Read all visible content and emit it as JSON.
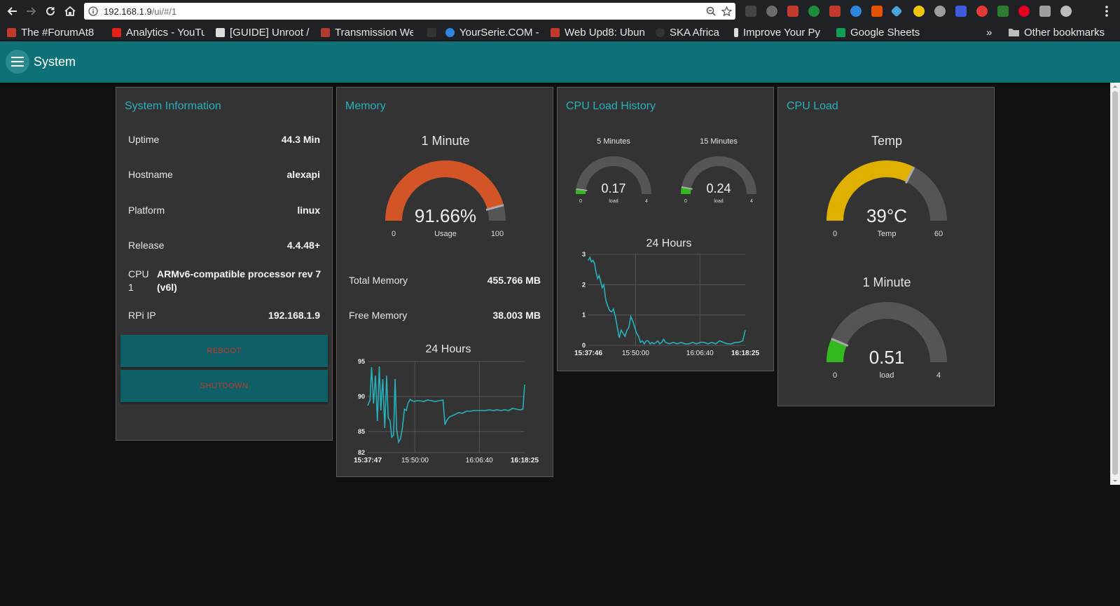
{
  "browser": {
    "url_host": "192.168.1.9",
    "url_path": "/ui/#/1",
    "bookmarks": [
      {
        "label": "The #ForumAt8",
        "color": "#c0392b"
      },
      {
        "label": "Analytics - YouTu",
        "color": "#e62117"
      },
      {
        "label": "[GUIDE] Unroot /",
        "color": "#dddddd"
      },
      {
        "label": "Transmission We",
        "color": "#b03a2e"
      },
      {
        "label": "",
        "color": "#333333"
      },
      {
        "label": "YourSerie.COM -",
        "color": "#2e86de"
      },
      {
        "label": "Web Upd8: Ubun",
        "color": "#c0392b"
      },
      {
        "label": "SKA Africa",
        "color": "#333333"
      },
      {
        "label": "Improve Your Py",
        "color": "#dddddd"
      },
      {
        "label": "Google Sheets",
        "color": "#0f9d58"
      }
    ],
    "overflow_label": "»",
    "other_bookmarks": "Other bookmarks"
  },
  "header": {
    "title": "System",
    "menu_icon": "hamburger-menu-icon"
  },
  "sysinfo": {
    "title": "System Information",
    "rows": [
      {
        "label": "Uptime",
        "value": "44.3 Min"
      },
      {
        "label": "Hostname",
        "value": "alexapi"
      },
      {
        "label": "Platform",
        "value": "linux"
      },
      {
        "label": "Release",
        "value": "4.4.48+"
      },
      {
        "label": "CPU\n1",
        "value": "ARMv6-compatible processor rev 7\n(v6l)"
      },
      {
        "label": "RPi IP",
        "value": "192.168.1.9"
      }
    ],
    "reboot_label": "REBOOT",
    "shutdown_label": "SHUTDOWN",
    "button_text_color": "#c0392b"
  },
  "memory": {
    "title": "Memory",
    "gauge": {
      "title": "1 Minute",
      "value_text": "91.66%",
      "value": 91.66,
      "min": 0,
      "max": 100,
      "label": "Usage",
      "min_label": "0",
      "max_label": "100",
      "color": "#d35427"
    },
    "total_label": "Total Memory",
    "total_value": "455.766 MB",
    "free_label": "Free Memory",
    "free_value": "38.003 MB",
    "chart_title": "24 Hours"
  },
  "cpu_history": {
    "title": "CPU Load History",
    "gauge5": {
      "title": "5 Minutes",
      "value_text": "0.17",
      "value": 0.17,
      "min": 0,
      "max": 4,
      "label": "load",
      "min_label": "0",
      "max_label": "4",
      "color": "#34b81f"
    },
    "gauge15": {
      "title": "15 Minutes",
      "value_text": "0.24",
      "value": 0.24,
      "min": 0,
      "max": 4,
      "label": "load",
      "min_label": "0",
      "max_label": "4",
      "color": "#34b81f"
    },
    "chart_title": "24 Hours"
  },
  "cpu_load": {
    "title": "CPU Load",
    "temp_gauge": {
      "title": "Temp",
      "value_text": "39°C",
      "value": 39,
      "min": 0,
      "max": 60,
      "label": "Temp",
      "min_label": "0",
      "max_label": "60",
      "color": "#e0b000"
    },
    "load_gauge": {
      "title": "1 Minute",
      "value_text": "0.51",
      "value": 0.51,
      "min": 0,
      "max": 4,
      "label": "load",
      "min_label": "0",
      "max_label": "4",
      "color": "#34b81f"
    }
  },
  "colors": {
    "accent": "#26b1bc",
    "appbar": "#0e7177",
    "card": "#333333",
    "line": "#26b1bc",
    "gauge_track": "#555555"
  },
  "chart_data": [
    {
      "type": "line",
      "title": "24 Hours",
      "xlabel": "",
      "ylabel": "",
      "xticks": [
        "15:37:47",
        "15:50:00",
        "16:06:40",
        "16:18:25"
      ],
      "yticks": [
        "95",
        "90",
        "85",
        "82"
      ],
      "ylim": [
        82,
        95
      ],
      "xlim_minutes": [
        0,
        40.63
      ],
      "series": [
        {
          "x": [
            0,
            0.6,
            1.0,
            1.5,
            2.0,
            2.5,
            3.0,
            3.4,
            3.9,
            4.4,
            4.9,
            5.3,
            5.8,
            6.2,
            6.7,
            7.1,
            7.5,
            8.0,
            8.5,
            9.0,
            9.5,
            10.0,
            10.4,
            11.0,
            11.5,
            12.0,
            12.5,
            13.5,
            14.5,
            15.5,
            16.5,
            17.5,
            18.5,
            19.5,
            20.0,
            20.4,
            21.0,
            21.6,
            22.5,
            23.5,
            24.5,
            25.5,
            26.5,
            27.5,
            28.5,
            29.5,
            30.5,
            31.5,
            32.5,
            33.5,
            34.5,
            35.5,
            36.5,
            37.5,
            38.5,
            39.5,
            40.2,
            40.63
          ],
          "y": [
            88.7,
            89.5,
            94.2,
            89.0,
            93.0,
            86.5,
            94.3,
            88.0,
            92.5,
            85.5,
            93.0,
            87.0,
            86.5,
            84.2,
            84.5,
            92.5,
            85.3,
            83.5,
            84.0,
            85.6,
            88.2,
            88.0,
            89.0,
            89.6,
            89.4,
            89.3,
            89.4,
            89.4,
            89.3,
            89.5,
            89.4,
            89.3,
            89.4,
            89.5,
            86.0,
            86.5,
            87.0,
            87.2,
            87.4,
            87.7,
            87.6,
            87.9,
            87.9,
            88.0,
            88.0,
            88.0,
            88.0,
            88.1,
            88.0,
            88.1,
            88.0,
            88.1,
            88.0,
            88.3,
            88.2,
            88.1,
            88.2,
            91.7
          ]
        }
      ]
    },
    {
      "type": "line",
      "title": "24 Hours",
      "xlabel": "",
      "ylabel": "",
      "xticks": [
        "15:37:46",
        "15:50:00",
        "16:06:40",
        "16:18:25"
      ],
      "yticks": [
        "3",
        "2",
        "1",
        "0"
      ],
      "ylim": [
        0,
        3
      ],
      "xlim_minutes": [
        0,
        40.65
      ],
      "series": [
        {
          "x": [
            0,
            0.4,
            0.8,
            1.2,
            1.6,
            2.0,
            2.4,
            2.8,
            3.2,
            3.6,
            4.0,
            4.5,
            5.0,
            5.5,
            6.0,
            6.5,
            7.0,
            7.5,
            8.0,
            8.5,
            9.0,
            9.5,
            10.0,
            10.5,
            11.0,
            11.5,
            12.0,
            12.5,
            13.0,
            13.5,
            14.0,
            14.5,
            15.0,
            15.5,
            16.0,
            16.5,
            17.0,
            17.5,
            18.0,
            18.5,
            19.0,
            19.5,
            20.0,
            21.0,
            22.0,
            23.0,
            24.0,
            25.0,
            26.0,
            27.0,
            28.0,
            29.0,
            30.0,
            31.0,
            32.0,
            33.0,
            34.0,
            35.0,
            36.0,
            37.0,
            38.0,
            39.0,
            40.0,
            40.65
          ],
          "y": [
            2.8,
            2.9,
            2.75,
            2.8,
            2.7,
            2.4,
            2.2,
            2.3,
            2.1,
            1.9,
            2.0,
            1.5,
            1.3,
            1.15,
            1.1,
            1.2,
            0.95,
            0.6,
            0.25,
            0.5,
            0.4,
            0.3,
            0.5,
            0.6,
            0.95,
            0.8,
            0.6,
            0.4,
            0.3,
            0.1,
            0.15,
            0.05,
            0.15,
            0.15,
            0.05,
            0.1,
            0.05,
            0.1,
            0.15,
            0.05,
            0.1,
            0.2,
            0.1,
            0.05,
            0.1,
            0.05,
            0.1,
            0.05,
            0.05,
            0.1,
            0.05,
            0.1,
            0.1,
            0.05,
            0.1,
            0.05,
            0.15,
            0.1,
            0.05,
            0.05,
            0.1,
            0.1,
            0.15,
            0.5
          ]
        }
      ]
    }
  ]
}
